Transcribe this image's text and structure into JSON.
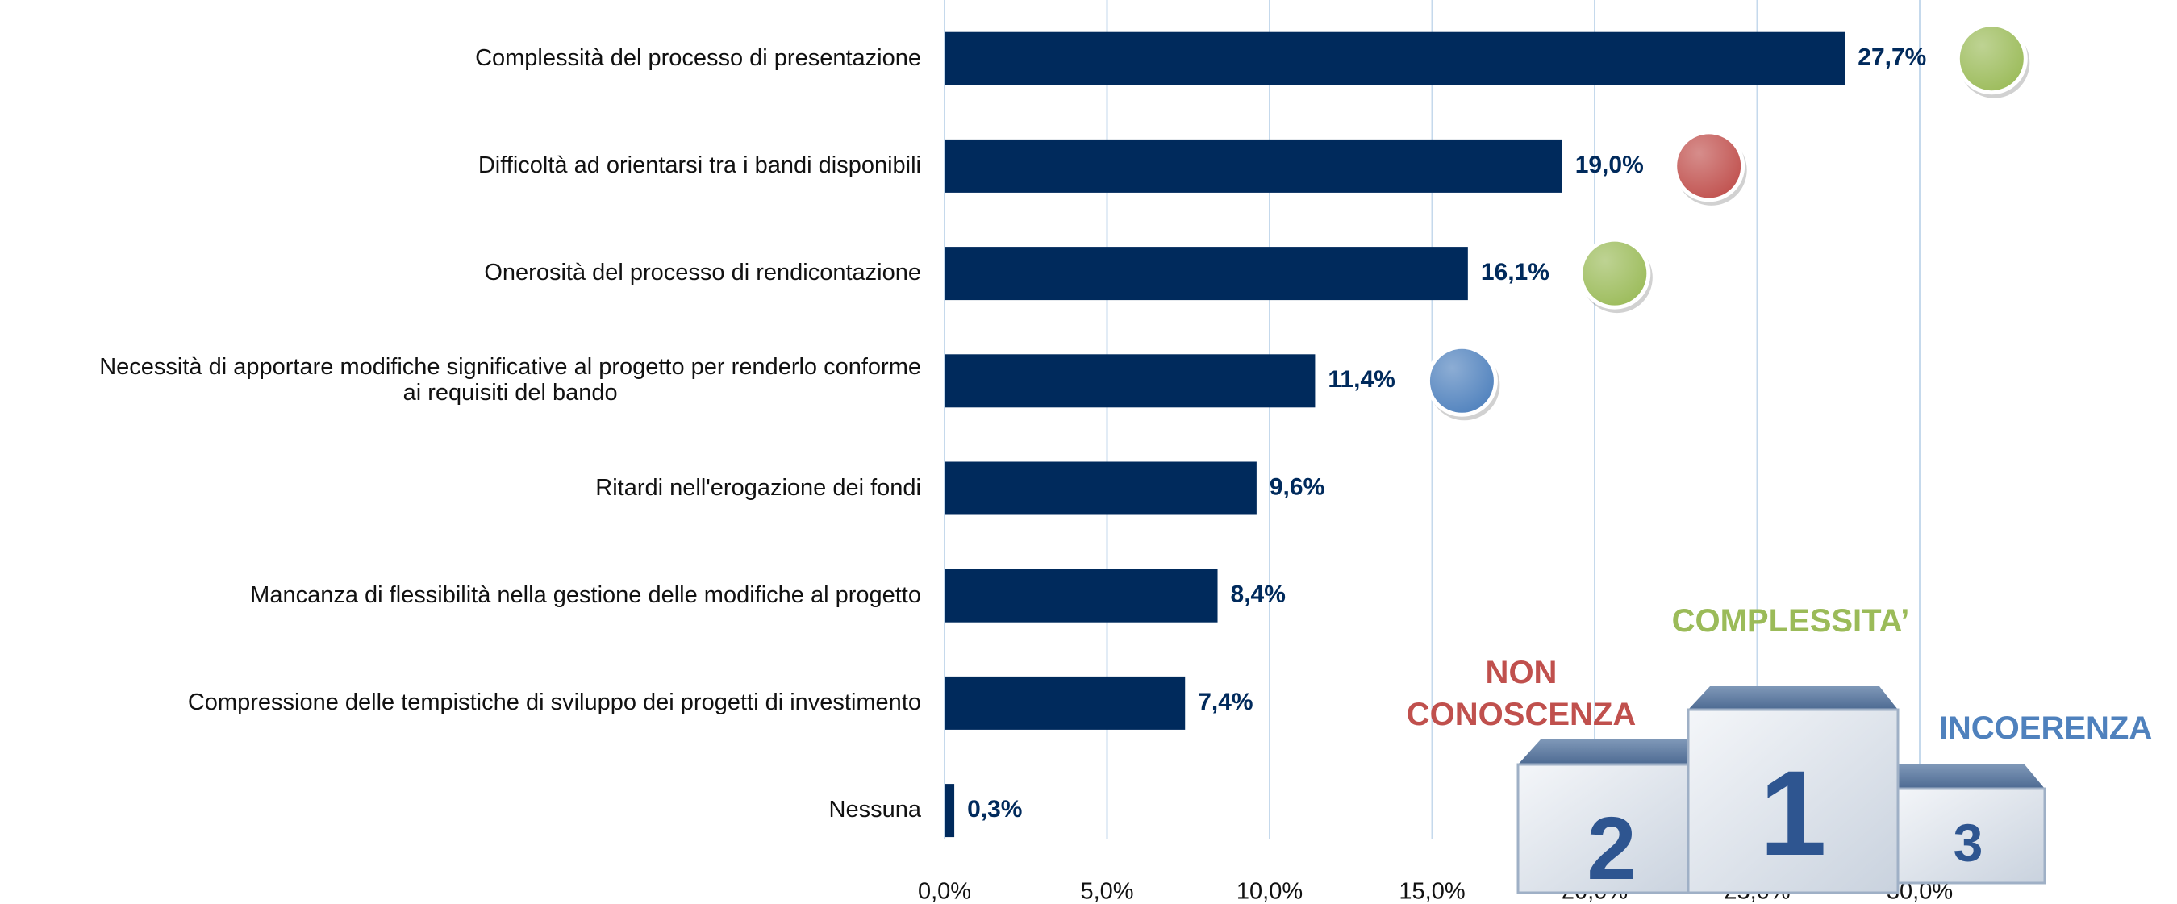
{
  "chart_data": {
    "type": "bar",
    "orientation": "horizontal",
    "categories": [
      "Complessità del processo di presentazione",
      "Difficoltà ad orientarsi tra i bandi disponibili",
      "Onerosità del processo di rendicontazione",
      "Necessità di apportare modifiche significative al progetto per renderlo conforme\nai requisiti del bando",
      "Ritardi nell'erogazione dei fondi",
      "Mancanza di flessibilità nella gestione delle modifiche al progetto",
      "Compressione delle tempistiche di sviluppo dei progetti di investimento",
      "Nessuna"
    ],
    "values": [
      27.7,
      19.0,
      16.1,
      11.4,
      9.6,
      8.4,
      7.4,
      0.3
    ],
    "value_labels": [
      "27,7%",
      "19,0%",
      "16,1%",
      "11,4%",
      "9,6%",
      "8,4%",
      "7,4%",
      "0,3%"
    ],
    "color": "#002a5c",
    "marker_colors": [
      "#9bbb59",
      "#c0504d",
      "#9bbb59",
      "#4f81bd",
      null,
      null,
      null,
      null
    ],
    "xlim": [
      0,
      30
    ],
    "xticks": [
      {
        "value": 0,
        "label": "0,0%"
      },
      {
        "value": 5,
        "label": "5,0%"
      },
      {
        "value": 10,
        "label": "10,0%"
      },
      {
        "value": 15,
        "label": "15,0%"
      },
      {
        "value": 20,
        "label": "20,0%"
      },
      {
        "value": 25,
        "label": "25,0%"
      },
      {
        "value": 30,
        "label": "30,0%"
      }
    ],
    "grid": true,
    "annotations": [
      {
        "text": "COMPLESSITA’",
        "color": "#9bbb59"
      },
      {
        "text": "NON\nCONOSCENZA",
        "color": "#c0504d"
      },
      {
        "text": "INCOERENZA",
        "color": "#4f81bd"
      }
    ],
    "podium": [
      "1",
      "2",
      "3"
    ]
  }
}
